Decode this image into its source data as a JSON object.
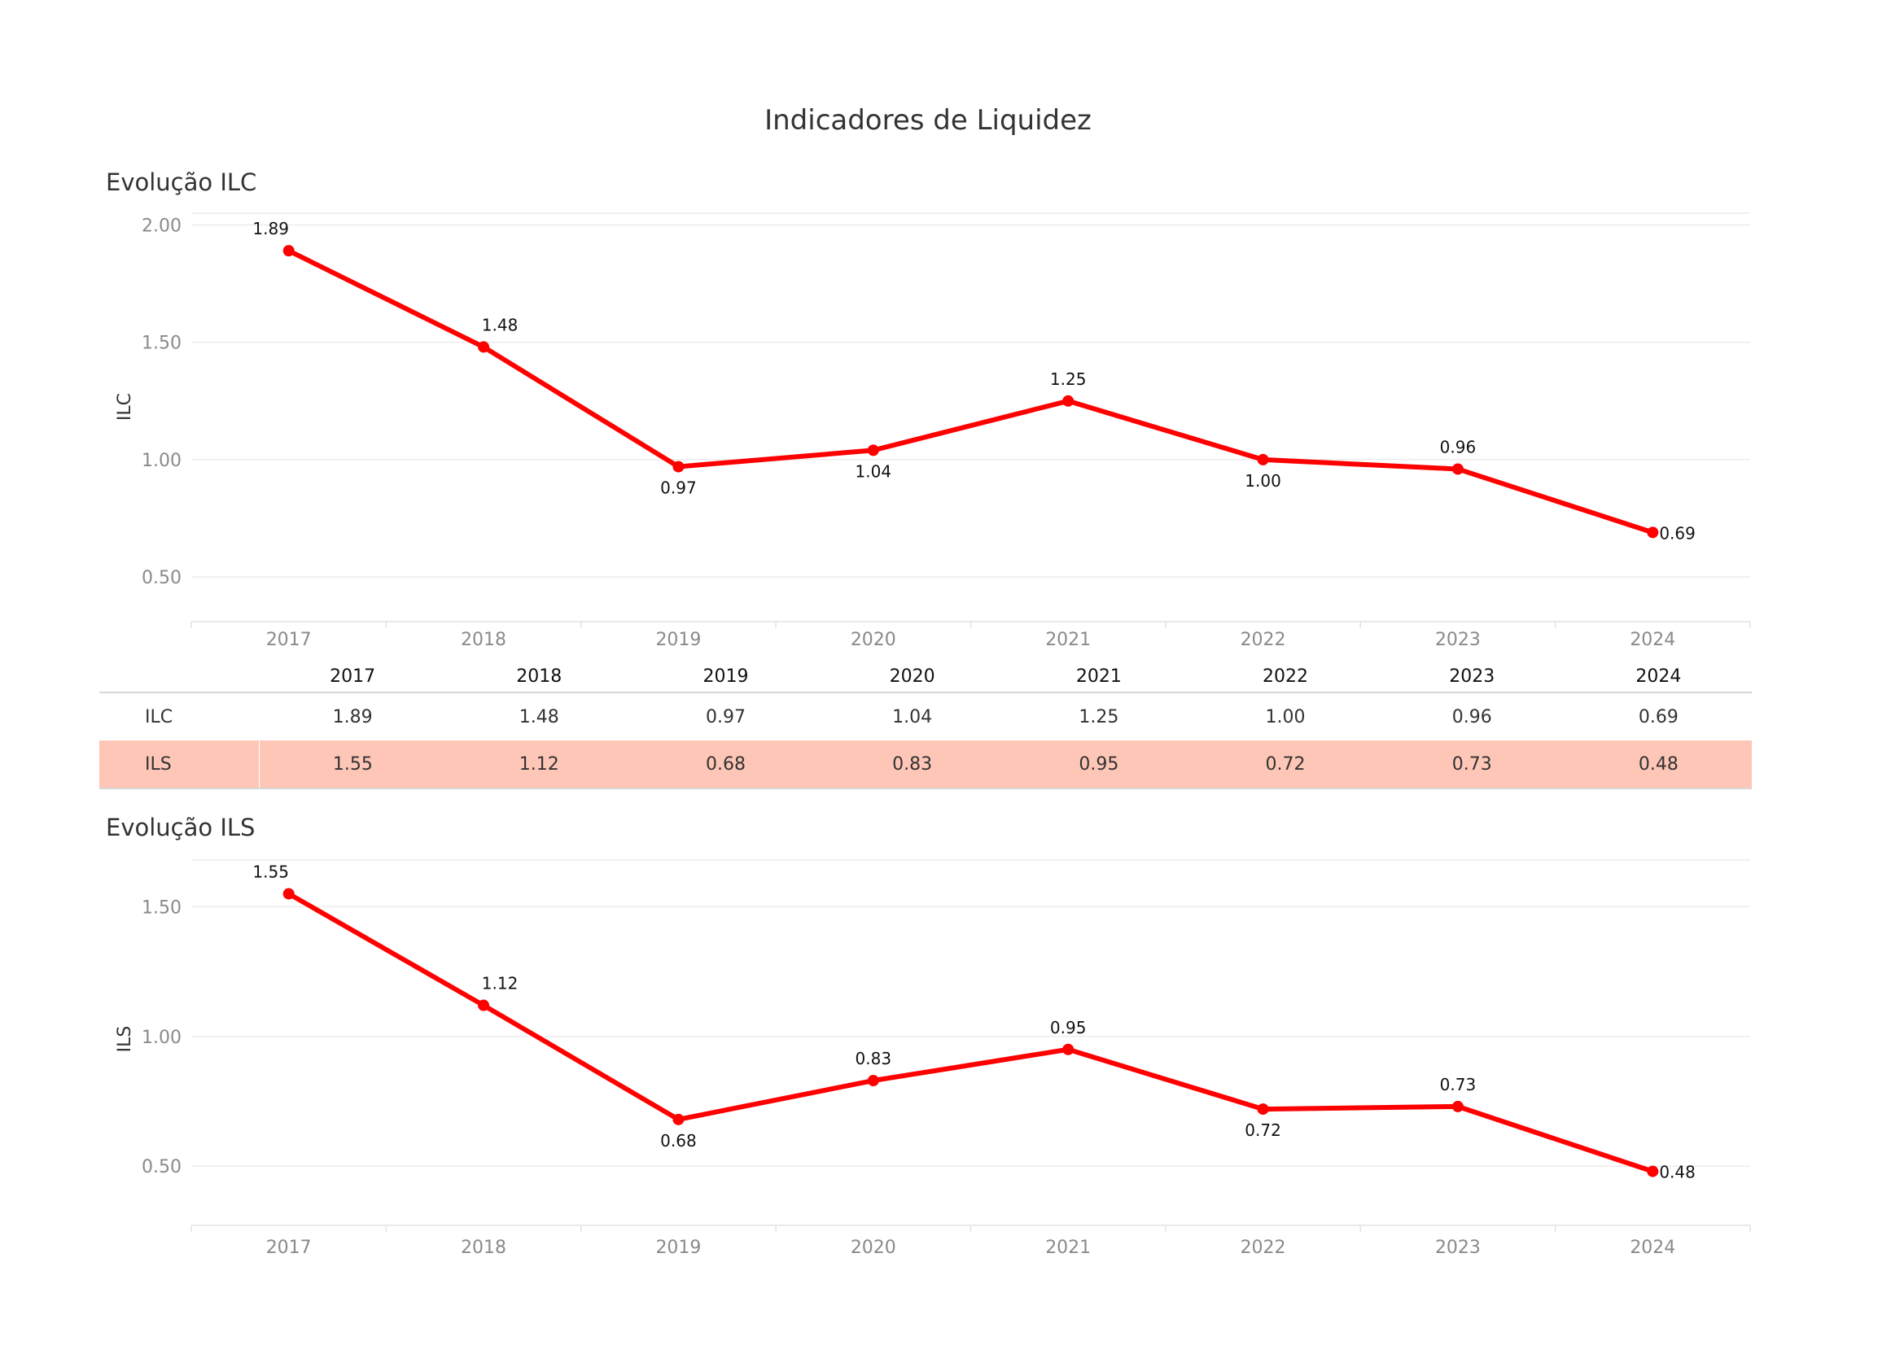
{
  "title": "Indicadores de Liquidez",
  "line_color": "#ff0000",
  "highlight_color": "#fec6b6",
  "table": {
    "columns": [
      "2017",
      "2018",
      "2019",
      "2020",
      "2021",
      "2022",
      "2023",
      "2024"
    ],
    "rows": [
      {
        "name": "ILC",
        "values": [
          "1.89",
          "1.48",
          "0.97",
          "1.04",
          "1.25",
          "1.00",
          "0.96",
          "0.69"
        ]
      },
      {
        "name": "ILS",
        "values": [
          "1.55",
          "1.12",
          "0.68",
          "0.83",
          "0.95",
          "0.72",
          "0.73",
          "0.48"
        ]
      }
    ]
  },
  "chart_data": [
    {
      "type": "line",
      "title": "Evolução ILC",
      "ylabel": "ILC",
      "xlabel": "",
      "x": [
        "2017",
        "2018",
        "2019",
        "2020",
        "2021",
        "2022",
        "2023",
        "2024"
      ],
      "series": [
        {
          "values": [
            1.89,
            1.48,
            0.97,
            1.04,
            1.25,
            1.0,
            0.96,
            0.69
          ]
        }
      ],
      "labels": [
        "1.89",
        "1.48",
        "0.97",
        "1.04",
        "1.25",
        "1.00",
        "0.96",
        "0.69"
      ],
      "label_positions": [
        "above",
        "above",
        "below",
        "below",
        "above",
        "below",
        "above",
        "right"
      ],
      "yticks": [
        0.5,
        1.0,
        1.5,
        2.0
      ],
      "ytick_labels": [
        "0.50",
        "1.00",
        "1.50",
        "2.00"
      ],
      "ylim": [
        0.4,
        2.05
      ],
      "grid": true
    },
    {
      "type": "line",
      "title": "Evolução ILS",
      "ylabel": "ILS",
      "xlabel": "",
      "x": [
        "2017",
        "2018",
        "2019",
        "2020",
        "2021",
        "2022",
        "2023",
        "2024"
      ],
      "series": [
        {
          "values": [
            1.55,
            1.12,
            0.68,
            0.83,
            0.95,
            0.72,
            0.73,
            0.48
          ]
        }
      ],
      "labels": [
        "1.55",
        "1.12",
        "0.68",
        "0.83",
        "0.95",
        "0.72",
        "0.73",
        "0.48"
      ],
      "label_positions": [
        "above",
        "above",
        "below",
        "above",
        "above",
        "below",
        "above",
        "right"
      ],
      "yticks": [
        0.5,
        1.0,
        1.5
      ],
      "ytick_labels": [
        "0.50",
        "1.00",
        "1.50"
      ],
      "ylim": [
        0.3,
        1.68
      ],
      "grid": true
    }
  ]
}
